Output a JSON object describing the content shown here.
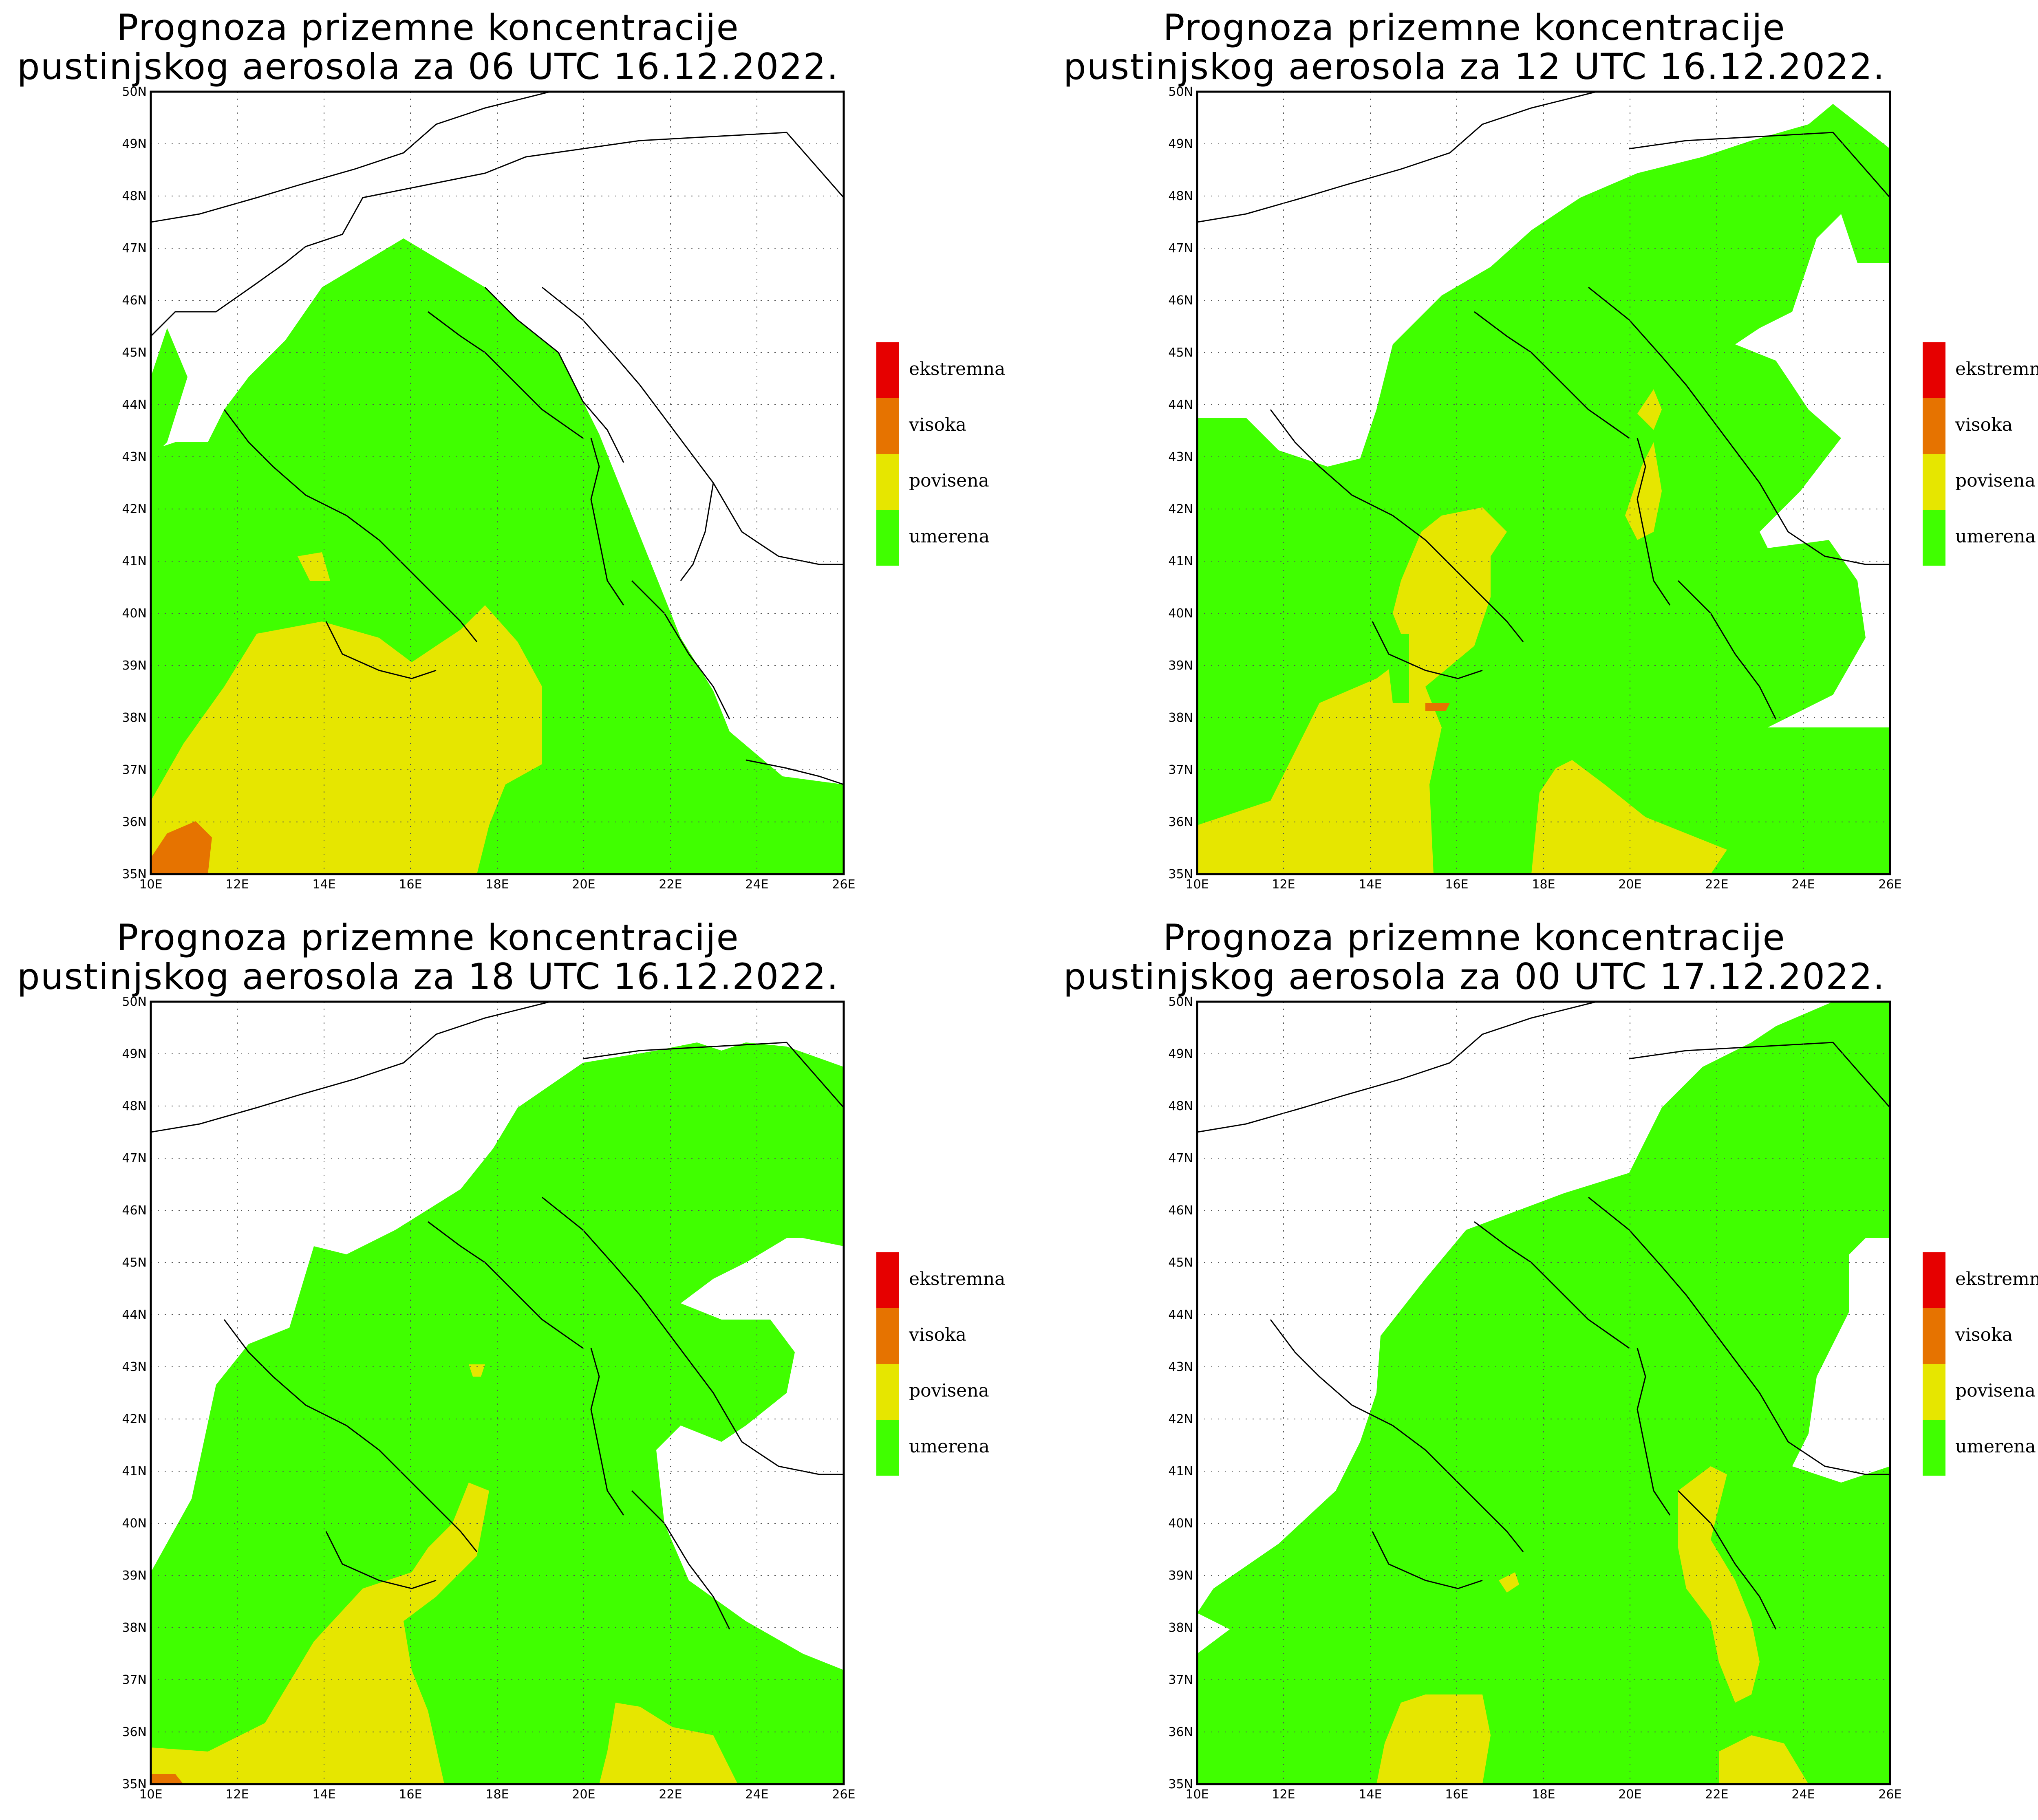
{
  "panels": [
    {
      "title_line1": "Prognoza prizemne koncentracije",
      "title_line2": "pustinjskog aerosola za 06 UTC 16.12.2022.",
      "valid": "06 UTC 16.12.2022."
    },
    {
      "title_line1": "Prognoza prizemne koncentracije",
      "title_line2": "pustinjskog aerosola za 12 UTC 16.12.2022.",
      "valid": "12 UTC 16.12.2022."
    },
    {
      "title_line1": "Prognoza prizemne koncentracije",
      "title_line2": "pustinjskog aerosola za 18 UTC 16.12.2022.",
      "valid": "18 UTC 16.12.2022."
    },
    {
      "title_line1": "Prognoza prizemne koncentracije",
      "title_line2": "pustinjskog aerosola za 00 UTC 17.12.2022.",
      "valid": "00 UTC 17.12.2022."
    }
  ],
  "axes": {
    "lat_ticks": [
      "50N",
      "49N",
      "48N",
      "47N",
      "46N",
      "45N",
      "44N",
      "43N",
      "42N",
      "41N",
      "40N",
      "39N",
      "38N",
      "37N",
      "36N",
      "35N"
    ],
    "lon_ticks": [
      "10E",
      "12E",
      "14E",
      "16E",
      "18E",
      "20E",
      "22E",
      "24E",
      "26E"
    ]
  },
  "legend": {
    "items": [
      {
        "label": "ekstremna",
        "color": "#e60000"
      },
      {
        "label": "visoka",
        "color": "#e67300"
      },
      {
        "label": "povisena",
        "color": "#e6e600"
      },
      {
        "label": "umerena",
        "color": "#40ff00"
      }
    ]
  },
  "colors": {
    "umerena": "#40ff00",
    "povisena": "#e6e600",
    "visoka": "#e67300",
    "ekstremna": "#e60000"
  }
}
